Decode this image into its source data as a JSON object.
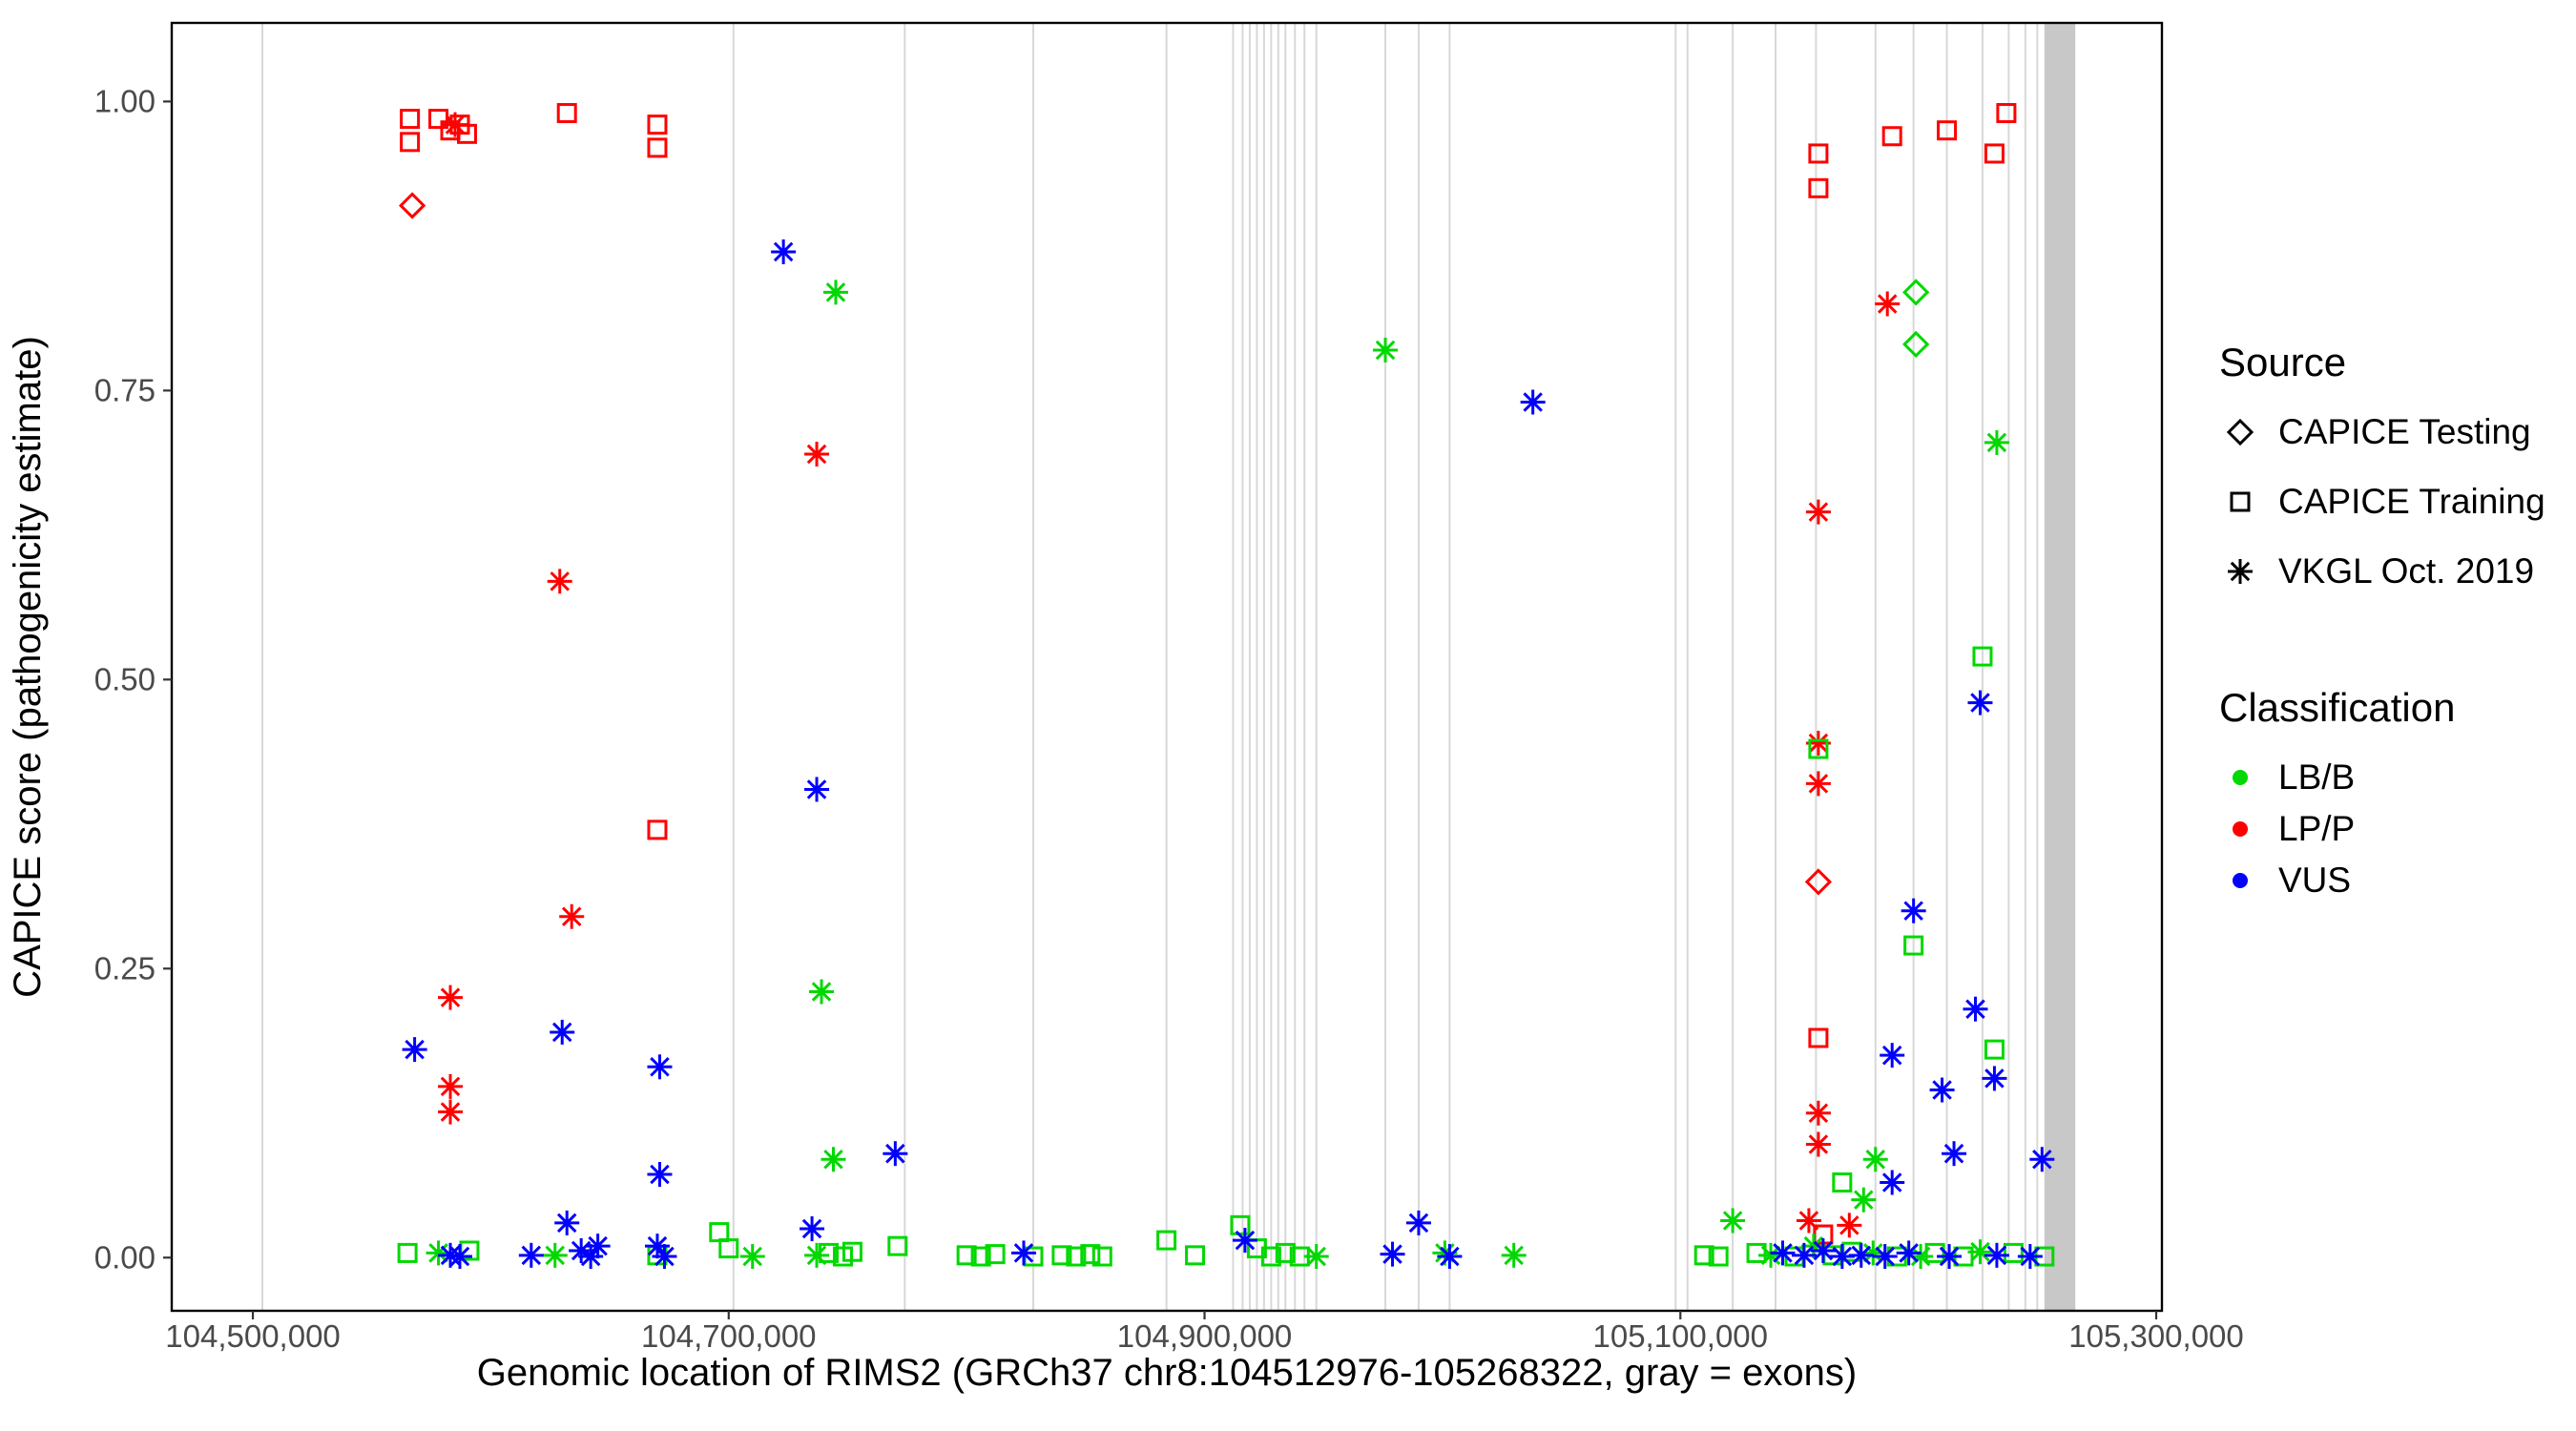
{
  "chart_data": {
    "type": "scatter",
    "title": "",
    "xlabel": "Genomic location of RIMS2 (GRCh37 chr8:104512976-105268322, gray = exons)",
    "ylabel": "CAPICE score (pathogenicity estimate)",
    "xlim": [
      104465900,
      105302400
    ],
    "ylim": [
      -0.046,
      1.068
    ],
    "grid": "off",
    "legend_position": "right",
    "x_ticks": [
      {
        "value": 104500000,
        "label": "104,500,000"
      },
      {
        "value": 104700000,
        "label": "104,700,000"
      },
      {
        "value": 104900000,
        "label": "104,900,000"
      },
      {
        "value": 105100000,
        "label": "105,100,000"
      },
      {
        "value": 105300000,
        "label": "105,300,000"
      }
    ],
    "y_ticks": [
      {
        "value": 0,
        "label": "0.00"
      },
      {
        "value": 0.25,
        "label": "0.25"
      },
      {
        "value": 0.5,
        "label": "0.50"
      },
      {
        "value": 0.75,
        "label": "0.75"
      },
      {
        "value": 1,
        "label": "1.00"
      }
    ],
    "exon_color": "#d8d8d8",
    "exon_band_color": "#c8c8c8",
    "exon_lines": [
      104504000,
      104702000,
      104774000,
      104828000,
      104884000,
      104912000,
      104916000,
      104919000,
      104922000,
      104925000,
      104928000,
      104931000,
      104934000,
      104938000,
      104942000,
      104947000,
      104976000,
      104990000,
      105003000,
      105098000,
      105103000,
      105122000,
      105140000,
      105157000,
      105182000,
      105198000,
      105212000,
      105227000,
      105238000,
      105245000,
      105250000
    ],
    "exon_band": {
      "start": 105253000,
      "end": 105266000
    },
    "colors": {
      "LB/B": "#00d800",
      "LP/P": "#ff0000",
      "VUS": "#0000ff"
    },
    "shapes": {
      "CAPICE Testing": "diamond",
      "CAPICE Training": "square",
      "VKGL Oct. 2019": "asterisk"
    },
    "source_codes": {
      "D": "CAPICE Testing",
      "S": "CAPICE Training",
      "A": "VKGL Oct. 2019"
    },
    "cls_codes": {
      "B": "LB/B",
      "P": "LP/P",
      "V": "VUS"
    },
    "legend": {
      "source": {
        "title": "Source",
        "items": [
          {
            "shape": "diamond",
            "label": "CAPICE Testing"
          },
          {
            "shape": "square",
            "label": "CAPICE Training"
          },
          {
            "shape": "asterisk",
            "label": "VKGL Oct. 2019"
          }
        ]
      },
      "classification": {
        "title": "Classification",
        "items": [
          {
            "label": "LB/B",
            "color": "#00d800"
          },
          {
            "label": "LP/P",
            "color": "#ff0000"
          },
          {
            "label": "VUS",
            "color": "#0000ff"
          }
        ]
      }
    },
    "points_format": [
      "x",
      "y",
      "source_code",
      "cls_code"
    ],
    "points": [
      [
        104566000,
        0.985,
        "S",
        "P"
      ],
      [
        104566000,
        0.965,
        "S",
        "P"
      ],
      [
        104578000,
        0.985,
        "S",
        "P"
      ],
      [
        104583000,
        0.975,
        "S",
        "P"
      ],
      [
        104587000,
        0.98,
        "S",
        "P"
      ],
      [
        104590000,
        0.972,
        "S",
        "P"
      ],
      [
        104632000,
        0.99,
        "S",
        "P"
      ],
      [
        104670000,
        0.98,
        "S",
        "P"
      ],
      [
        104670000,
        0.96,
        "S",
        "P"
      ],
      [
        104670000,
        0.37,
        "S",
        "P"
      ],
      [
        105158000,
        0.955,
        "S",
        "P"
      ],
      [
        105158000,
        0.925,
        "S",
        "P"
      ],
      [
        105158000,
        0.19,
        "S",
        "P"
      ],
      [
        105160000,
        0.02,
        "S",
        "P"
      ],
      [
        105189000,
        0.97,
        "S",
        "P"
      ],
      [
        105212000,
        0.975,
        "S",
        "P"
      ],
      [
        105232000,
        0.955,
        "S",
        "P"
      ],
      [
        105237000,
        0.99,
        "S",
        "P"
      ],
      [
        104567000,
        0.91,
        "D",
        "P"
      ],
      [
        105158000,
        0.325,
        "D",
        "P"
      ],
      [
        104585000,
        0.98,
        "A",
        "P"
      ],
      [
        104583000,
        0.225,
        "A",
        "P"
      ],
      [
        104583000,
        0.148,
        "A",
        "P"
      ],
      [
        104583000,
        0.126,
        "A",
        "P"
      ],
      [
        104629000,
        0.585,
        "A",
        "P"
      ],
      [
        104634000,
        0.295,
        "A",
        "P"
      ],
      [
        104737000,
        0.695,
        "A",
        "P"
      ],
      [
        105187000,
        0.825,
        "A",
        "P"
      ],
      [
        105158000,
        0.645,
        "A",
        "P"
      ],
      [
        105158000,
        0.445,
        "A",
        "P"
      ],
      [
        105158000,
        0.41,
        "A",
        "P"
      ],
      [
        105158000,
        0.125,
        "A",
        "P"
      ],
      [
        105158000,
        0.098,
        "A",
        "P"
      ],
      [
        105154000,
        0.032,
        "A",
        "P"
      ],
      [
        105171000,
        0.028,
        "A",
        "P"
      ],
      [
        105199000,
        0.835,
        "D",
        "B"
      ],
      [
        105199000,
        0.79,
        "D",
        "B"
      ],
      [
        105158000,
        0.44,
        "S",
        "B"
      ],
      [
        105227000,
        0.52,
        "S",
        "B"
      ],
      [
        105198000,
        0.27,
        "S",
        "B"
      ],
      [
        105232000,
        0.18,
        "S",
        "B"
      ],
      [
        105168000,
        0.065,
        "S",
        "B"
      ],
      [
        104696000,
        0.022,
        "S",
        "B"
      ],
      [
        104700000,
        0.008,
        "S",
        "B"
      ],
      [
        104915000,
        0.028,
        "S",
        "B"
      ],
      [
        104884000,
        0.015,
        "S",
        "B"
      ],
      [
        104565000,
        0.004,
        "S",
        "B"
      ],
      [
        104591000,
        0.006,
        "S",
        "B"
      ],
      [
        104670000,
        0.002,
        "S",
        "B"
      ],
      [
        104742000,
        0.004,
        "S",
        "B"
      ],
      [
        104748000,
        0.001,
        "S",
        "B"
      ],
      [
        104752000,
        0.005,
        "S",
        "B"
      ],
      [
        104771000,
        0.01,
        "S",
        "B"
      ],
      [
        104800000,
        0.002,
        "S",
        "B"
      ],
      [
        104806000,
        0.001,
        "S",
        "B"
      ],
      [
        104812000,
        0.003,
        "S",
        "B"
      ],
      [
        104828000,
        0.001,
        "S",
        "B"
      ],
      [
        104840000,
        0.002,
        "S",
        "B"
      ],
      [
        104846000,
        0.001,
        "S",
        "B"
      ],
      [
        104852000,
        0.003,
        "S",
        "B"
      ],
      [
        104857000,
        0.001,
        "S",
        "B"
      ],
      [
        104896000,
        0.002,
        "S",
        "B"
      ],
      [
        104922000,
        0.008,
        "S",
        "B"
      ],
      [
        104928000,
        0.001,
        "S",
        "B"
      ],
      [
        104934000,
        0.004,
        "S",
        "B"
      ],
      [
        104940000,
        0.001,
        "S",
        "B"
      ],
      [
        105110000,
        0.002,
        "S",
        "B"
      ],
      [
        105116000,
        0.001,
        "S",
        "B"
      ],
      [
        105132000,
        0.004,
        "S",
        "B"
      ],
      [
        105148000,
        0.001,
        "S",
        "B"
      ],
      [
        105164000,
        0.002,
        "S",
        "B"
      ],
      [
        105172000,
        0.005,
        "S",
        "B"
      ],
      [
        105191000,
        0.001,
        "S",
        "B"
      ],
      [
        105207000,
        0.004,
        "S",
        "B"
      ],
      [
        105219000,
        0.001,
        "S",
        "B"
      ],
      [
        105240000,
        0.004,
        "S",
        "B"
      ],
      [
        105253000,
        0.001,
        "S",
        "B"
      ],
      [
        104745000,
        0.835,
        "A",
        "B"
      ],
      [
        104976000,
        0.785,
        "A",
        "B"
      ],
      [
        105233000,
        0.705,
        "A",
        "B"
      ],
      [
        104739000,
        0.23,
        "A",
        "B"
      ],
      [
        104744000,
        0.085,
        "A",
        "B"
      ],
      [
        105122000,
        0.032,
        "A",
        "B"
      ],
      [
        105182000,
        0.085,
        "A",
        "B"
      ],
      [
        105177000,
        0.05,
        "A",
        "B"
      ],
      [
        104578000,
        0.004,
        "A",
        "B"
      ],
      [
        104627000,
        0.002,
        "A",
        "B"
      ],
      [
        104710000,
        0.001,
        "A",
        "B"
      ],
      [
        104737000,
        0.002,
        "A",
        "B"
      ],
      [
        104947000,
        0.001,
        "A",
        "B"
      ],
      [
        105001000,
        0.004,
        "A",
        "B"
      ],
      [
        105030000,
        0.002,
        "A",
        "B"
      ],
      [
        105138000,
        0.002,
        "A",
        "B"
      ],
      [
        105156000,
        0.01,
        "A",
        "B"
      ],
      [
        105181000,
        0.004,
        "A",
        "B"
      ],
      [
        105201000,
        0.001,
        "A",
        "B"
      ],
      [
        105226000,
        0.005,
        "A",
        "B"
      ],
      [
        104723000,
        0.87,
        "A",
        "V"
      ],
      [
        105038000,
        0.74,
        "A",
        "V"
      ],
      [
        104737000,
        0.405,
        "A",
        "V"
      ],
      [
        104568000,
        0.18,
        "A",
        "V"
      ],
      [
        104630000,
        0.195,
        "A",
        "V"
      ],
      [
        104671000,
        0.165,
        "A",
        "V"
      ],
      [
        104671000,
        0.072,
        "A",
        "V"
      ],
      [
        104770000,
        0.09,
        "A",
        "V"
      ],
      [
        104735000,
        0.025,
        "A",
        "V"
      ],
      [
        104632000,
        0.03,
        "A",
        "V"
      ],
      [
        104917000,
        0.015,
        "A",
        "V"
      ],
      [
        104990000,
        0.03,
        "A",
        "V"
      ],
      [
        105226000,
        0.48,
        "A",
        "V"
      ],
      [
        105198000,
        0.3,
        "A",
        "V"
      ],
      [
        105224000,
        0.215,
        "A",
        "V"
      ],
      [
        105189000,
        0.175,
        "A",
        "V"
      ],
      [
        105210000,
        0.145,
        "A",
        "V"
      ],
      [
        105232000,
        0.155,
        "A",
        "V"
      ],
      [
        105215000,
        0.09,
        "A",
        "V"
      ],
      [
        105252000,
        0.085,
        "A",
        "V"
      ],
      [
        105189000,
        0.065,
        "A",
        "V"
      ],
      [
        104583000,
        0.002,
        "A",
        "V"
      ],
      [
        104587000,
        0.001,
        "A",
        "V"
      ],
      [
        104617000,
        0.002,
        "A",
        "V"
      ],
      [
        104638000,
        0.006,
        "A",
        "V"
      ],
      [
        104642000,
        0.001,
        "A",
        "V"
      ],
      [
        104645000,
        0.01,
        "A",
        "V"
      ],
      [
        104670000,
        0.01,
        "A",
        "V"
      ],
      [
        104673000,
        0.001,
        "A",
        "V"
      ],
      [
        104824000,
        0.004,
        "A",
        "V"
      ],
      [
        104979000,
        0.003,
        "A",
        "V"
      ],
      [
        105003000,
        0.001,
        "A",
        "V"
      ],
      [
        105143000,
        0.004,
        "A",
        "V"
      ],
      [
        105152000,
        0.002,
        "A",
        "V"
      ],
      [
        105160000,
        0.006,
        "A",
        "V"
      ],
      [
        105168000,
        0.001,
        "A",
        "V"
      ],
      [
        105176000,
        0.002,
        "A",
        "V"
      ],
      [
        105186000,
        0.001,
        "A",
        "V"
      ],
      [
        105196000,
        0.004,
        "A",
        "V"
      ],
      [
        105213000,
        0.001,
        "A",
        "V"
      ],
      [
        105233000,
        0.002,
        "A",
        "V"
      ],
      [
        105247000,
        0.001,
        "A",
        "V"
      ]
    ]
  }
}
